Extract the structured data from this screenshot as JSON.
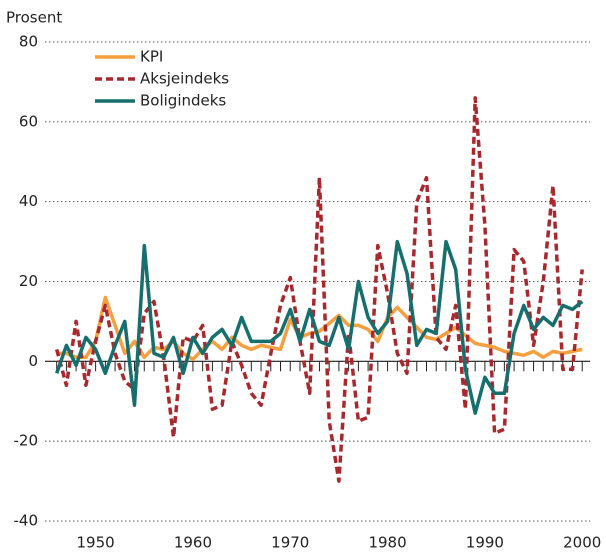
{
  "chart_data": {
    "type": "line",
    "y_label": "Prosent",
    "x": [
      1946,
      1947,
      1948,
      1949,
      1950,
      1951,
      1952,
      1953,
      1954,
      1955,
      1956,
      1957,
      1958,
      1959,
      1960,
      1961,
      1962,
      1963,
      1964,
      1965,
      1966,
      1967,
      1968,
      1969,
      1970,
      1971,
      1972,
      1973,
      1974,
      1975,
      1976,
      1977,
      1978,
      1979,
      1980,
      1981,
      1982,
      1983,
      1984,
      1985,
      1986,
      1987,
      1988,
      1989,
      1990,
      1991,
      1992,
      1993,
      1994,
      1995,
      1996,
      1997,
      1998,
      1999,
      2000
    ],
    "series": [
      {
        "name": "KPI",
        "color": "#f5a040",
        "linestyle": "solid",
        "values": [
          2,
          2,
          1,
          1,
          5,
          16,
          9,
          2,
          5,
          1,
          3.5,
          3,
          5,
          2,
          0.5,
          3,
          5,
          3,
          6,
          4,
          3,
          4,
          3.5,
          3,
          10.5,
          6,
          7,
          7.5,
          9.5,
          11.5,
          9,
          9,
          8,
          5,
          11,
          13.5,
          11,
          8.5,
          6,
          5.5,
          7,
          8.5,
          6.5,
          4.5,
          4,
          3.5,
          2.5,
          2,
          1.5,
          2.5,
          1,
          2.5,
          2,
          2.5,
          3
        ]
      },
      {
        "name": "Aksjeindeks",
        "color": "#a8282e",
        "linestyle": "dashed",
        "values": [
          3,
          -6,
          10,
          -6,
          5,
          14,
          2,
          -5,
          -7,
          12,
          15,
          1,
          -19,
          6,
          5,
          9,
          -12,
          -11,
          5,
          -1,
          -8,
          -11,
          2,
          14,
          21,
          5,
          -8,
          46,
          -15,
          -30,
          7,
          -15,
          -14,
          29,
          17,
          2,
          -3,
          40,
          46,
          6,
          3,
          14,
          -12,
          66,
          34,
          -18,
          -17,
          28,
          25,
          4,
          20,
          44,
          -2,
          -2,
          23
        ]
      },
      {
        "name": "Boligindeks",
        "color": "#176f6d",
        "linestyle": "solid",
        "values": [
          -3,
          4,
          -1,
          6,
          3,
          -3,
          4,
          10,
          -11,
          29,
          2,
          1,
          6,
          -3,
          6,
          2,
          6,
          8,
          4,
          11,
          5,
          5,
          5,
          7,
          13,
          5,
          13,
          5,
          4,
          11,
          3,
          20,
          11,
          7,
          10,
          30,
          22,
          4,
          8,
          7,
          30,
          23,
          -2,
          -13,
          -4,
          -8,
          -8,
          7,
          14,
          8,
          11,
          9,
          14,
          13,
          15
        ]
      }
    ],
    "xlim": [
      1944.8,
      2000.8
    ],
    "xticks": [
      1950,
      1960,
      1970,
      1980,
      1990,
      2000
    ],
    "ylim": [
      -40,
      80
    ],
    "yticks": [
      -40,
      -20,
      0,
      20,
      40,
      60,
      80
    ],
    "grid": true,
    "legend": "upper left"
  }
}
